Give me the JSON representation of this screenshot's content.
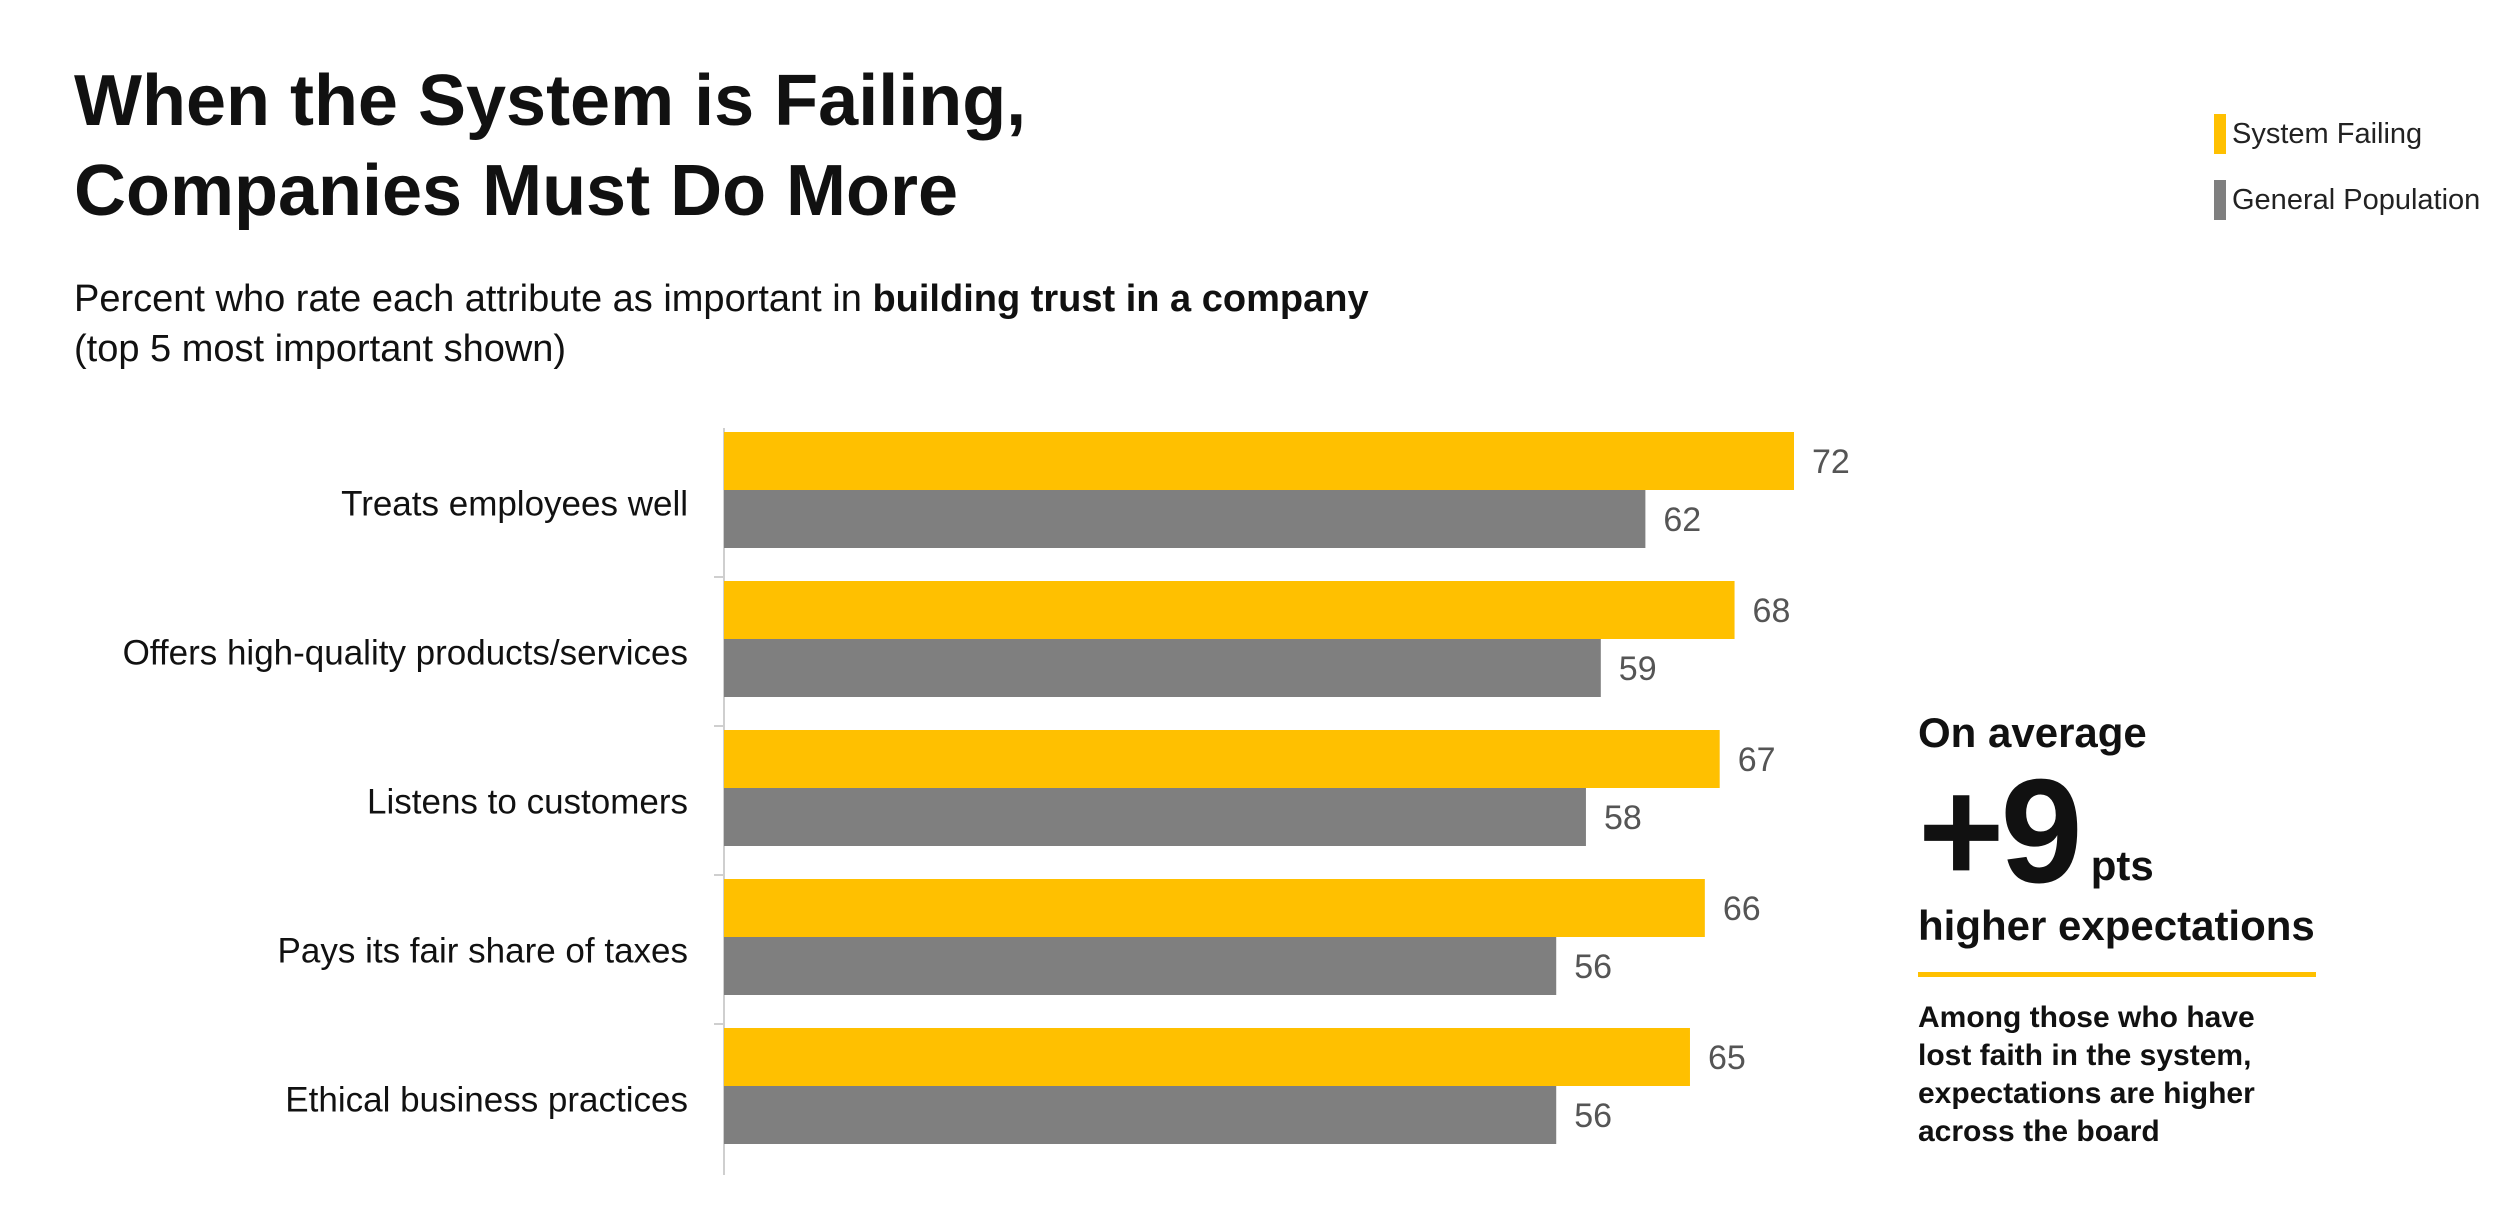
{
  "title": {
    "line1": "When the System is Failing,",
    "line2": "Companies Must Do More"
  },
  "subtitle": {
    "prefix": "Percent who rate each attribute as important in ",
    "bold": "building trust in a company",
    "line2": "(top 5 most important shown)"
  },
  "legend": {
    "items": [
      {
        "label": "System Failing",
        "color": "#FFC000"
      },
      {
        "label": "General Population",
        "color": "#7F7F7F"
      }
    ]
  },
  "chart_data": {
    "type": "bar",
    "orientation": "horizontal",
    "categories": [
      "Treats employees well",
      "Offers high-quality products/services",
      "Listens to customers",
      "Pays its fair share of taxes",
      "Ethical business practices"
    ],
    "series": [
      {
        "name": "System Failing",
        "color": "#FFC000",
        "values": [
          72,
          68,
          67,
          66,
          65
        ]
      },
      {
        "name": "General Population",
        "color": "#7F7F7F",
        "values": [
          62,
          59,
          58,
          56,
          56
        ]
      }
    ],
    "title": "When the System is Failing, Companies Must Do More",
    "xlim": [
      0,
      72
    ],
    "grid": false,
    "data_labels": true,
    "legend_position": "top-right"
  },
  "callout": {
    "avg_label": "On average",
    "big_value": "+9",
    "unit": "pts",
    "higher": "higher expectations",
    "note_lines": [
      "Among those who have",
      "lost faith in the system,",
      "expectations are higher",
      "across the board"
    ],
    "rule_color": "#FFC000"
  }
}
